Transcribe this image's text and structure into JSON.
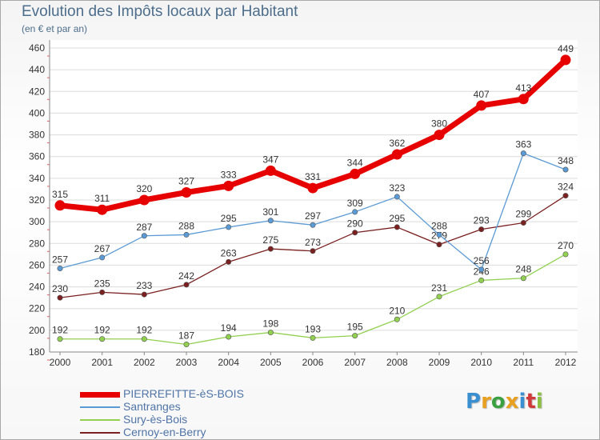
{
  "chart_data": {
    "type": "line",
    "title": "Evolution des Impôts locaux par Habitant",
    "subtitle": "(en € et par an)",
    "xlabel": "",
    "ylabel": "",
    "x": [
      "2000",
      "2001",
      "2002",
      "2003",
      "2004",
      "2005",
      "2006",
      "2007",
      "2008",
      "2009",
      "2010",
      "2011",
      "2012"
    ],
    "ylim": [
      180,
      460
    ],
    "yticks": [
      180,
      200,
      220,
      240,
      260,
      280,
      300,
      320,
      340,
      360,
      380,
      400,
      420,
      440,
      460
    ],
    "grid": "horizontal",
    "legend_position": "bottom-left",
    "series": [
      {
        "name": "PIERREFITTE-èS-BOIS",
        "color": "#e60000",
        "emphasis": true,
        "values": [
          315,
          311,
          320,
          327,
          333,
          347,
          331,
          344,
          362,
          380,
          407,
          413,
          449
        ]
      },
      {
        "name": "Santranges",
        "color": "#5b9bd5",
        "emphasis": false,
        "values": [
          257,
          267,
          287,
          288,
          295,
          301,
          297,
          309,
          323,
          288,
          256,
          363,
          348
        ]
      },
      {
        "name": "Sury-ès-Bois",
        "color": "#92d050",
        "emphasis": false,
        "values": [
          192,
          192,
          192,
          187,
          194,
          198,
          193,
          195,
          210,
          231,
          246,
          248,
          270
        ]
      },
      {
        "name": "Cernoy-en-Berry",
        "color": "#7b2020",
        "emphasis": false,
        "values": [
          230,
          235,
          233,
          242,
          263,
          275,
          273,
          290,
          295,
          279,
          293,
          299,
          324
        ]
      }
    ]
  },
  "brand": {
    "letters": [
      "P",
      "r",
      "o",
      "x",
      "i",
      "t",
      "i"
    ],
    "colors": [
      "#3a8fd0",
      "#e8a020",
      "#3aa040",
      "#e8a020",
      "#3a8fd0",
      "#d03a3a",
      "#8bc040"
    ]
  }
}
